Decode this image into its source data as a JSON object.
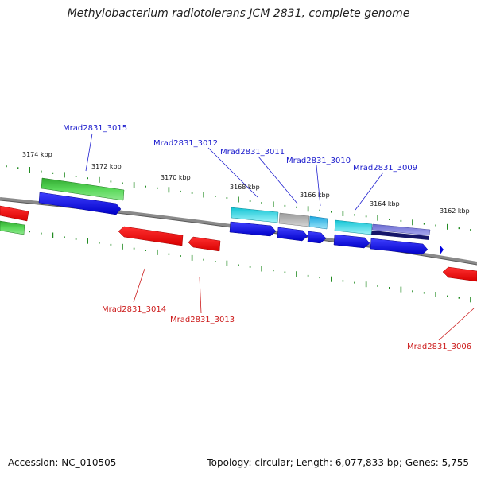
{
  "header": {
    "title": "Methylobacterium radiotolerans JCM 2831, complete genome"
  },
  "footer": {
    "accession": "Accession: NC_010505",
    "summary": "Topology: circular; Length: 6,077,833 bp; Genes: 5,755"
  },
  "scale_labels": [
    "3174 kbp",
    "3172 kbp",
    "3170 kbp",
    "3168 kbp",
    "3166 kbp",
    "3164 kbp",
    "3162 kbp"
  ],
  "gene_labels": {
    "top": [
      "Mrad2831_3015",
      "Mrad2831_3012",
      "Mrad2831_3011",
      "Mrad2831_3010",
      "Mrad2831_3009"
    ],
    "bottom": [
      "Mrad2831_3014",
      "Mrad2831_3013",
      "Mrad2831_3006"
    ]
  },
  "colors": {
    "forward_label": "#1a1acc",
    "reverse_label": "#cc1a1a",
    "backbone": "#888888",
    "ticks": "#228b22"
  }
}
